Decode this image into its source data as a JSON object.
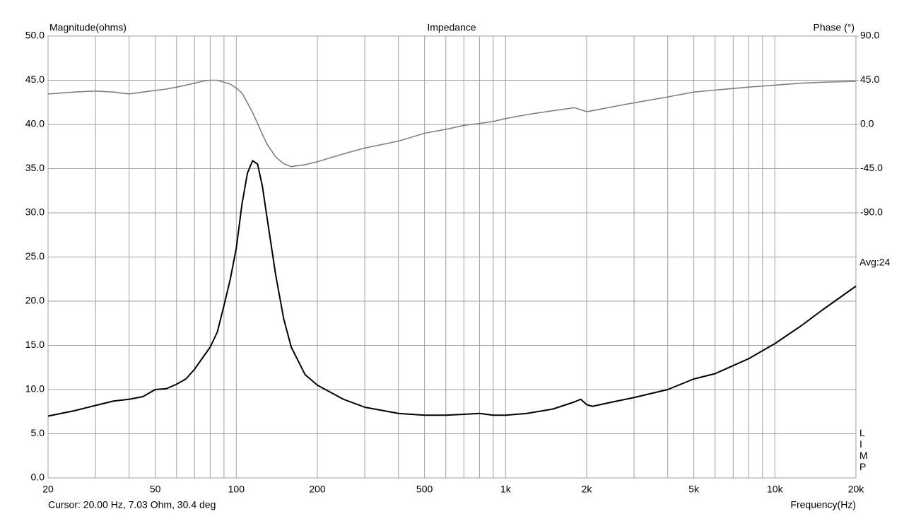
{
  "chart_data": {
    "type": "line",
    "title": "Impedance",
    "y_label": "Magnitude(ohms)",
    "y2_label": "Phase (°)",
    "x_label": "Frequency(Hz)",
    "annotations": {
      "average": "Avg:24",
      "side": "LIMP",
      "cursor": "Cursor: 20.00 Hz, 7.03 Ohm, 30.4 deg"
    },
    "log_x": true,
    "grid": true,
    "xlim": [
      20,
      20000
    ],
    "xticks": [
      20,
      50,
      100,
      200,
      500,
      {
        "value": 1000,
        "label": "1k"
      },
      {
        "value": 2000,
        "label": "2k"
      },
      {
        "value": 5000,
        "label": "5k"
      },
      {
        "value": 10000,
        "label": "10k"
      },
      {
        "value": 20000,
        "label": "20k"
      }
    ],
    "xminor_grid": [
      30,
      40,
      60,
      70,
      80,
      90,
      300,
      400,
      600,
      700,
      800,
      900,
      3000,
      4000,
      6000,
      7000,
      8000,
      9000
    ],
    "ylim": [
      0,
      50
    ],
    "yticks": [
      {
        "value": 0,
        "label": "0.0"
      },
      {
        "value": 5,
        "label": "5.0"
      },
      {
        "value": 10,
        "label": "10.0"
      },
      {
        "value": 15,
        "label": "15.0"
      },
      {
        "value": 20,
        "label": "20.0"
      },
      {
        "value": 25,
        "label": "25.0"
      },
      {
        "value": 30,
        "label": "30.0"
      },
      {
        "value": 35,
        "label": "35.0"
      },
      {
        "value": 40,
        "label": "40.0"
      },
      {
        "value": 45,
        "label": "45.0"
      },
      {
        "value": 50,
        "label": "50.0"
      }
    ],
    "y2lim": [
      -360,
      90
    ],
    "y2ticks": [
      {
        "value": -90,
        "label": "-90.0"
      },
      {
        "value": -45,
        "label": "-45.0"
      },
      {
        "value": 0,
        "label": "0.0"
      },
      {
        "value": 45,
        "label": "45.0"
      },
      {
        "value": 90,
        "label": "90.0"
      }
    ],
    "x": [
      20,
      25,
      30,
      35,
      40,
      45,
      50,
      55,
      60,
      65,
      70,
      75,
      80,
      85,
      90,
      95,
      100,
      105,
      110,
      115,
      120,
      125,
      130,
      140,
      150,
      160,
      180,
      200,
      250,
      300,
      400,
      500,
      600,
      700,
      800,
      900,
      1000,
      1200,
      1500,
      1800,
      1900,
      2000,
      2100,
      2500,
      3000,
      4000,
      5000,
      6000,
      8000,
      10000,
      12500,
      15000,
      20000
    ],
    "series": [
      {
        "color": "#000000",
        "values": [
          7.0,
          7.6,
          8.2,
          8.7,
          8.9,
          9.2,
          10.0,
          10.1,
          10.6,
          11.2,
          12.3,
          13.6,
          14.8,
          16.5,
          19.5,
          22.5,
          26,
          31,
          34.5,
          35.9,
          35.5,
          33,
          29.5,
          23,
          18,
          14.8,
          11.7,
          10.5,
          8.9,
          8.0,
          7.3,
          7.1,
          7.1,
          7.2,
          7.3,
          7.1,
          7.1,
          7.3,
          7.8,
          8.6,
          8.9,
          8.3,
          8.1,
          8.6,
          9.1,
          10.0,
          11.2,
          11.8,
          13.5,
          15.2,
          17.2,
          19.0,
          21.7
        ]
      },
      {
        "color": "#808080",
        "axis": "y2",
        "values": [
          31,
          33,
          34,
          33,
          31,
          33,
          34.6,
          36,
          38,
          40,
          42,
          44,
          45,
          45,
          43,
          41,
          37,
          32,
          22,
          12,
          1,
          -10,
          -20,
          -33,
          -40,
          -43,
          -41,
          -38,
          -30,
          -24,
          -17,
          -9,
          -5,
          -1,
          1,
          3,
          6,
          10,
          14,
          17,
          15,
          13,
          14,
          18,
          22,
          28,
          33,
          35,
          38,
          40,
          42,
          43,
          44
        ]
      }
    ]
  }
}
